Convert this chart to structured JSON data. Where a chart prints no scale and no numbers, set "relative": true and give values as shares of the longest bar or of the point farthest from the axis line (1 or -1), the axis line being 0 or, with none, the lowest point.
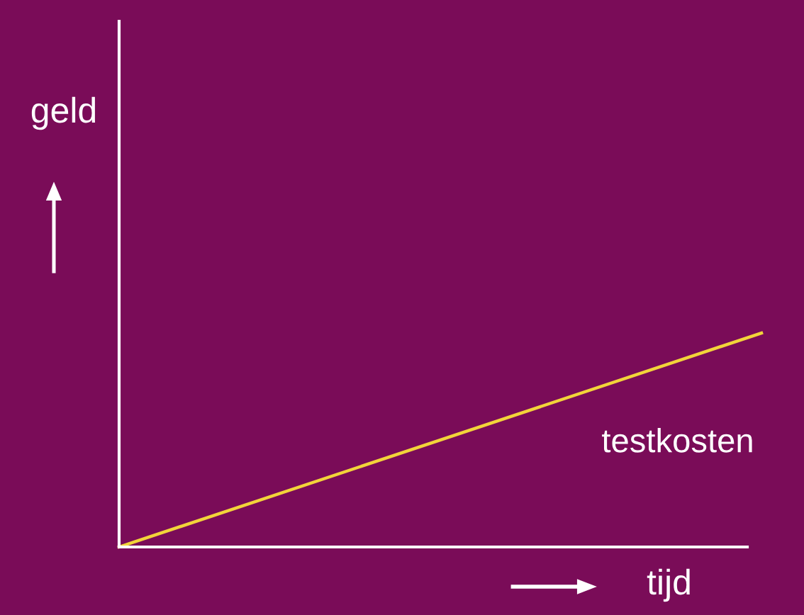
{
  "chart_data": {
    "type": "line",
    "relative": true,
    "xlabel": "tijd",
    "annotations": [
      "geld"
    ],
    "categories": [
      null,
      null
    ],
    "series": [
      {
        "name": "testkosten",
        "color": "#f2d43a",
        "values": [
          0,
          1
        ]
      }
    ],
    "legend": false,
    "marker": "none",
    "line_style": "solid"
  }
}
